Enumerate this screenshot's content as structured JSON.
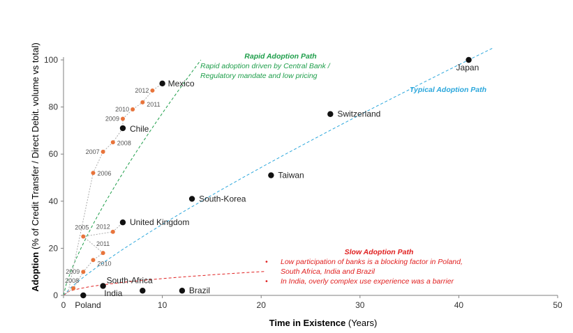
{
  "chart_data": {
    "type": "scatter",
    "xlabel_bold": "Time in Existence",
    "xlabel_rest": " (Years)",
    "ylabel_bold": "Adoption",
    "ylabel_rest": " (% of Credit Transfer / Direct Debit. volume vs total)",
    "xlim": [
      0,
      50
    ],
    "ylim": [
      0,
      100
    ],
    "xticks": [
      0,
      10,
      20,
      30,
      40,
      50
    ],
    "yticks": [
      0,
      20,
      40,
      60,
      80,
      100
    ],
    "grid": false,
    "countries": [
      {
        "name": "Japan",
        "x": 41,
        "y": 100
      },
      {
        "name": "Mexico",
        "x": 10,
        "y": 90
      },
      {
        "name": "Switzerland",
        "x": 27,
        "y": 77
      },
      {
        "name": "Chile",
        "x": 6,
        "y": 71
      },
      {
        "name": "Taiwan",
        "x": 21,
        "y": 51
      },
      {
        "name": "South-Korea",
        "x": 13,
        "y": 41
      },
      {
        "name": "United Kingdom",
        "x": 6,
        "y": 31
      },
      {
        "name": "South-Africa",
        "x": 4,
        "y": 4
      },
      {
        "name": "India",
        "x": 8,
        "y": 2
      },
      {
        "name": "Brazil",
        "x": 12,
        "y": 2
      },
      {
        "name": "Poland",
        "x": 2,
        "y": 0
      }
    ],
    "chile_path": [
      {
        "label": "2006",
        "x": 3,
        "y": 52
      },
      {
        "label": "2007",
        "x": 4,
        "y": 61
      },
      {
        "label": "2008",
        "x": 5,
        "y": 65
      },
      {
        "label": "2009",
        "x": 6,
        "y": 75
      },
      {
        "label": "2010",
        "x": 7,
        "y": 79
      },
      {
        "label": "2011",
        "x": 8,
        "y": 82
      },
      {
        "label": "2012",
        "x": 9,
        "y": 87
      }
    ],
    "uk_path": [
      {
        "label": "2008",
        "x": 1,
        "y": 3
      },
      {
        "label": "2009",
        "x": 2,
        "y": 10
      },
      {
        "label": "2010",
        "x": 3,
        "y": 15
      },
      {
        "label": "2011",
        "x": 4,
        "y": 18
      },
      {
        "label": "2005",
        "x": 2,
        "y": 25
      },
      {
        "label": "2012",
        "x": 5,
        "y": 27
      }
    ],
    "colors": {
      "point": "#111111",
      "year_point": "#e8743b",
      "rapid": "#1e9e4a",
      "typical": "#2ba7dc",
      "slow": "#e02020",
      "connector": "#aaaaaa"
    }
  },
  "annotations": {
    "rapid_title": "Rapid Adoption Path",
    "rapid_text_1": "Rapid adoption driven by Central Bank /",
    "rapid_text_2": "Regulatory mandate and low pricing",
    "typical_title": "Typical Adoption Path",
    "slow_title": "Slow Adoption Path",
    "slow_bullet_1a": "Low participation of banks is a blocking factor in Poland,",
    "slow_bullet_1b": "South Africa, India and Brazil",
    "slow_bullet_2": "In India, overly complex use experience was a barrier"
  }
}
